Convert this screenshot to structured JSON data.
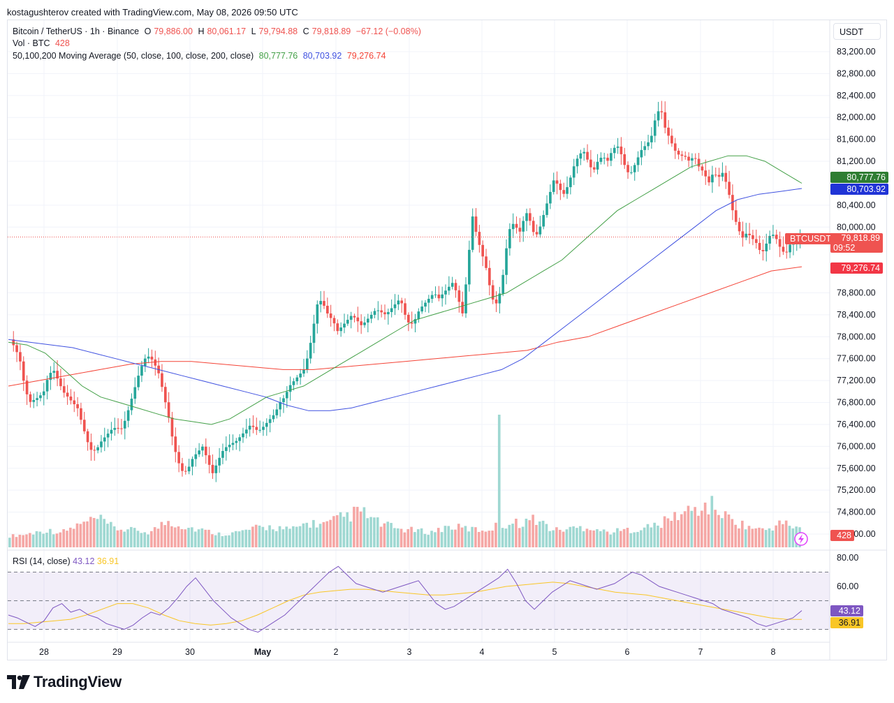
{
  "credit": "kostagushterov created with TradingView.com, May 08, 2026 09:50 UTC",
  "legend": {
    "symbol": "Bitcoin / TetherUS · 1h · Binance",
    "open_label": "O",
    "open": "79,886.00",
    "high_label": "H",
    "high": "80,061.17",
    "low_label": "L",
    "low": "79,794.88",
    "close_label": "C",
    "close": "79,818.89",
    "change": "−67.12 (−0.08%)",
    "vol_label": "Vol · BTC",
    "vol_value": "428",
    "ma_label": "50,100,200 Moving Average (50, close, 100, close, 200, close)",
    "ma50": "80,777.76",
    "ma100": "80,703.92",
    "ma200": "79,276.74"
  },
  "price_axis_unit": "USDT",
  "price_labels": [
    "83,200.00",
    "82,800.00",
    "82,400.00",
    "82,000.00",
    "81,600.00",
    "81,200.00",
    "80,400.00",
    "80,000.00",
    "78,800.00",
    "78,400.00",
    "78,000.00",
    "77,600.00",
    "77,200.00",
    "76,800.00",
    "76,400.00",
    "76,000.00",
    "75,600.00",
    "75,200.00",
    "74,800.00",
    "74,400.00"
  ],
  "badges": {
    "ma50": "80,777.76",
    "ma100": "80,703.92",
    "symbol_tag": "BTCUSDT",
    "last_price": "79,818.89",
    "countdown": "09:52",
    "ma200": "79,276.74",
    "volume": "428"
  },
  "rsi": {
    "label": "RSI (14, close)",
    "rsi_value": "43.12",
    "ma_value": "36.91",
    "axis_labels": [
      "80.00",
      "60.00"
    ]
  },
  "time_labels": [
    "28",
    "29",
    "30",
    "May",
    "2",
    "3",
    "4",
    "5",
    "6",
    "7",
    "8"
  ],
  "brand": "TradingView",
  "colors": {
    "up": "#26a69a",
    "down": "#ef5350",
    "ma50": "#43a047",
    "ma100": "#3f51e0",
    "ma200": "#f44336",
    "rsi": "#7e57c2",
    "rsi_ma": "#f9c626"
  },
  "chart_data": {
    "type": "candlestick",
    "symbol": "BTCUSDT",
    "interval": "1h",
    "ylim": [
      74200,
      83400
    ],
    "rsi_ylim": [
      20,
      85
    ],
    "rsi_band": [
      30,
      70
    ],
    "x_ticks": [
      "28",
      "29",
      "30",
      "May",
      "2",
      "3",
      "4",
      "5",
      "6",
      "7",
      "8"
    ],
    "price_path": [
      77950,
      77800,
      77600,
      77100,
      76800,
      76850,
      76900,
      77000,
      77300,
      77400,
      77200,
      77000,
      76900,
      76800,
      76700,
      76400,
      76100,
      75900,
      75950,
      76100,
      76200,
      76300,
      76350,
      76300,
      76500,
      76800,
      77100,
      77400,
      77600,
      77650,
      77500,
      77300,
      76900,
      76500,
      76000,
      75700,
      75500,
      75600,
      75800,
      75900,
      76000,
      75750,
      75500,
      75700,
      75900,
      76000,
      76050,
      76100,
      76200,
      76300,
      76400,
      76300,
      76300,
      76400,
      76500,
      76600,
      76800,
      76900,
      77100,
      77200,
      77300,
      77400,
      77700,
      78200,
      78700,
      78600,
      78400,
      78300,
      78100,
      78200,
      78300,
      78400,
      78300,
      78200,
      78300,
      78400,
      78500,
      78450,
      78400,
      78500,
      78600,
      78700,
      78400,
      78200,
      78300,
      78500,
      78600,
      78700,
      78800,
      78700,
      78800,
      78900,
      79000,
      78700,
      78400,
      79300,
      80200,
      79800,
      79500,
      79200,
      78700,
      78600,
      78900,
      79600,
      80100,
      80000,
      79900,
      80300,
      80100,
      79800,
      80000,
      80300,
      80600,
      80900,
      80700,
      80600,
      80800,
      81100,
      81300,
      81400,
      81200,
      81000,
      81200,
      81300,
      81200,
      81400,
      81500,
      81300,
      81000,
      81000,
      81200,
      81400,
      81500,
      81600,
      82000,
      82200,
      81800,
      81600,
      81400,
      81300,
      81300,
      81200,
      81300,
      81100,
      81000,
      80800,
      81000,
      80900,
      81000,
      80700,
      80300,
      80000,
      79800,
      79900,
      79800,
      79700,
      79500,
      79700,
      79900,
      79800,
      79600,
      79500,
      79700,
      79800,
      79818.89
    ],
    "ma50_path": [
      77900,
      77850,
      77700,
      77400,
      77100,
      76900,
      76800,
      76700,
      76600,
      76500,
      76450,
      76400,
      76500,
      76700,
      76900,
      77000,
      77100,
      77300,
      77500,
      77700,
      77900,
      78100,
      78300,
      78400,
      78500,
      78600,
      78700,
      78800,
      79000,
      79200,
      79400,
      79700,
      80000,
      80300,
      80500,
      80700,
      80900,
      81100,
      81200,
      81300,
      81300,
      81200,
      81000,
      80800
    ],
    "ma100_path": [
      77950,
      77900,
      77850,
      77800,
      77700,
      77600,
      77500,
      77400,
      77300,
      77200,
      77100,
      77000,
      76900,
      76750,
      76650,
      76650,
      76700,
      76800,
      76900,
      77000,
      77100,
      77200,
      77300,
      77400,
      77600,
      77900,
      78200,
      78500,
      78800,
      79100,
      79400,
      79700,
      80000,
      80300,
      80500,
      80600,
      80650,
      80703.92
    ],
    "ma200_path": [
      77100,
      77200,
      77300,
      77400,
      77500,
      77550,
      77550,
      77500,
      77450,
      77400,
      77400,
      77450,
      77500,
      77550,
      77600,
      77650,
      77700,
      77750,
      77900,
      78000,
      78200,
      78400,
      78600,
      78800,
      79000,
      79200,
      79276.74
    ],
    "rsi_path": [
      40,
      38,
      35,
      32,
      36,
      45,
      48,
      42,
      44,
      40,
      38,
      34,
      32,
      30,
      33,
      38,
      42,
      40,
      45,
      52,
      60,
      66,
      58,
      50,
      44,
      38,
      34,
      30,
      28,
      32,
      36,
      40,
      46,
      52,
      58,
      64,
      70,
      74,
      68,
      62,
      60,
      58,
      56,
      58,
      60,
      62,
      64,
      56,
      48,
      44,
      46,
      50,
      54,
      58,
      62,
      66,
      72,
      62,
      50,
      44,
      50,
      56,
      60,
      64,
      62,
      60,
      58,
      60,
      62,
      66,
      70,
      68,
      64,
      60,
      58,
      56,
      54,
      52,
      50,
      48,
      44,
      42,
      40,
      38,
      34,
      32,
      34,
      36,
      38,
      43.12
    ],
    "rsi_ma_path": [
      34,
      34,
      35,
      36,
      37,
      40,
      44,
      48,
      48,
      45,
      40,
      36,
      34,
      33,
      34,
      36,
      40,
      45,
      50,
      54,
      56,
      57,
      58,
      58,
      57,
      56,
      55,
      54,
      54,
      55,
      56,
      58,
      60,
      61,
      62,
      63,
      62,
      60,
      58,
      56,
      55,
      54,
      52,
      50,
      48,
      46,
      44,
      42,
      40,
      38,
      37,
      36.91
    ],
    "volume_profile": [
      0.15,
      0.2,
      0.3,
      0.25,
      0.45,
      0.6,
      0.35,
      0.3,
      0.25,
      0.55,
      0.4,
      0.3,
      0.2,
      0.25,
      0.35,
      0.4,
      0.3,
      0.5,
      0.45,
      0.65,
      0.8,
      0.5,
      0.35,
      0.3,
      0.25,
      0.4,
      0.35,
      0.3,
      0.45,
      0.5,
      0.6,
      0.3,
      0.35,
      0.4,
      0.25,
      0.3,
      0.35,
      0.45,
      0.7,
      0.85,
      0.95,
      0.6,
      0.4,
      0.3,
      0.5,
      0.35
    ]
  }
}
